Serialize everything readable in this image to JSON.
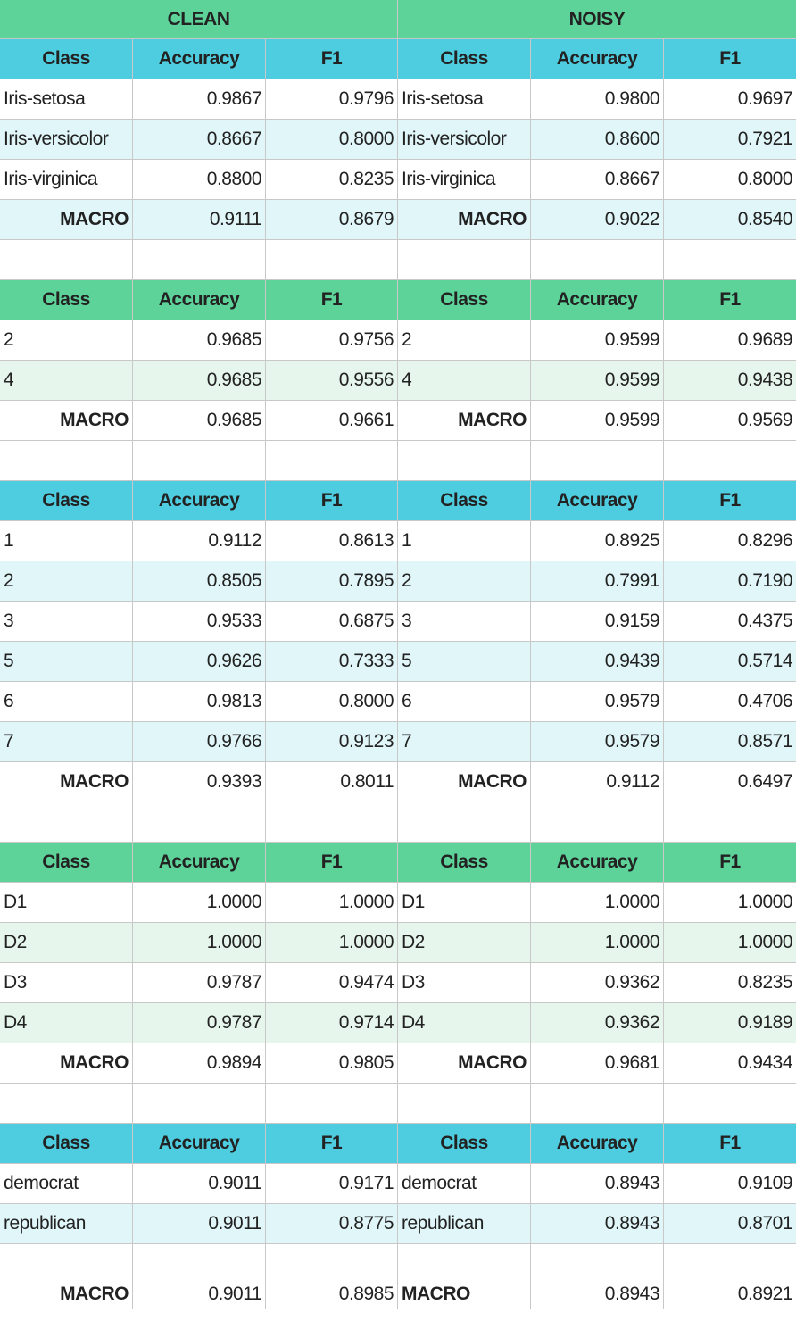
{
  "header": {
    "clean": "CLEAN",
    "noisy": "NOISY"
  },
  "columns": {
    "class": "Class",
    "accuracy": "Accuracy",
    "f1": "F1"
  },
  "tables": [
    {
      "rows": [
        {
          "c_class": "Iris-setosa",
          "c_acc": "0.9867",
          "c_f1": "0.9796",
          "n_class": "Iris-setosa",
          "n_acc": "0.9800",
          "n_f1": "0.9697"
        },
        {
          "c_class": "Iris-versicolor",
          "c_acc": "0.8667",
          "c_f1": "0.8000",
          "n_class": "Iris-versicolor",
          "n_acc": "0.8600",
          "n_f1": "0.7921"
        },
        {
          "c_class": "Iris-virginica",
          "c_acc": "0.8800",
          "c_f1": "0.8235",
          "n_class": "Iris-virginica",
          "n_acc": "0.8667",
          "n_f1": "0.8000"
        }
      ],
      "macro": {
        "label": "MACRO",
        "c_acc": "0.9111",
        "c_f1": "0.8679",
        "n_acc": "0.9022",
        "n_f1": "0.8540"
      }
    },
    {
      "rows": [
        {
          "c_class": "2",
          "c_acc": "0.9685",
          "c_f1": "0.9756",
          "n_class": "2",
          "n_acc": "0.9599",
          "n_f1": "0.9689"
        },
        {
          "c_class": "4",
          "c_acc": "0.9685",
          "c_f1": "0.9556",
          "n_class": "4",
          "n_acc": "0.9599",
          "n_f1": "0.9438"
        }
      ],
      "macro": {
        "label": "MACRO",
        "c_acc": "0.9685",
        "c_f1": "0.9661",
        "n_acc": "0.9599",
        "n_f1": "0.9569"
      }
    },
    {
      "rows": [
        {
          "c_class": "1",
          "c_acc": "0.9112",
          "c_f1": "0.8613",
          "n_class": "1",
          "n_acc": "0.8925",
          "n_f1": "0.8296"
        },
        {
          "c_class": "2",
          "c_acc": "0.8505",
          "c_f1": "0.7895",
          "n_class": "2",
          "n_acc": "0.7991",
          "n_f1": "0.7190"
        },
        {
          "c_class": "3",
          "c_acc": "0.9533",
          "c_f1": "0.6875",
          "n_class": "3",
          "n_acc": "0.9159",
          "n_f1": "0.4375"
        },
        {
          "c_class": "5",
          "c_acc": "0.9626",
          "c_f1": "0.7333",
          "n_class": "5",
          "n_acc": "0.9439",
          "n_f1": "0.5714"
        },
        {
          "c_class": "6",
          "c_acc": "0.9813",
          "c_f1": "0.8000",
          "n_class": "6",
          "n_acc": "0.9579",
          "n_f1": "0.4706"
        },
        {
          "c_class": "7",
          "c_acc": "0.9766",
          "c_f1": "0.9123",
          "n_class": "7",
          "n_acc": "0.9579",
          "n_f1": "0.8571"
        }
      ],
      "macro": {
        "label": "MACRO",
        "c_acc": "0.9393",
        "c_f1": "0.8011",
        "n_acc": "0.9112",
        "n_f1": "0.6497"
      }
    },
    {
      "rows": [
        {
          "c_class": "D1",
          "c_acc": "1.0000",
          "c_f1": "1.0000",
          "n_class": "D1",
          "n_acc": "1.0000",
          "n_f1": "1.0000"
        },
        {
          "c_class": "D2",
          "c_acc": "1.0000",
          "c_f1": "1.0000",
          "n_class": "D2",
          "n_acc": "1.0000",
          "n_f1": "1.0000"
        },
        {
          "c_class": "D3",
          "c_acc": "0.9787",
          "c_f1": "0.9474",
          "n_class": "D3",
          "n_acc": "0.9362",
          "n_f1": "0.8235"
        },
        {
          "c_class": "D4",
          "c_acc": "0.9787",
          "c_f1": "0.9714",
          "n_class": "D4",
          "n_acc": "0.9362",
          "n_f1": "0.9189"
        }
      ],
      "macro": {
        "label": "MACRO",
        "c_acc": "0.9894",
        "c_f1": "0.9805",
        "n_acc": "0.9681",
        "n_f1": "0.9434"
      }
    },
    {
      "rows": [
        {
          "c_class": "democrat",
          "c_acc": "0.9011",
          "c_f1": "0.9171",
          "n_class": "democrat",
          "n_acc": "0.8943",
          "n_f1": "0.9109"
        },
        {
          "c_class": "republican",
          "c_acc": "0.9011",
          "c_f1": "0.8775",
          "n_class": "republican",
          "n_acc": "0.8943",
          "n_f1": "0.8701"
        }
      ],
      "macro": {
        "label": "MACRO",
        "c_acc": "0.9011",
        "c_f1": "0.8985",
        "n_acc": "0.8943",
        "n_f1": "0.8921"
      }
    }
  ],
  "colors": {
    "header_green": "#5dd39a",
    "header_blue": "#4ecde0",
    "band_blue": "#e0f6f9",
    "band_green": "#e6f6ec",
    "gridline": "#c8c8c8"
  }
}
